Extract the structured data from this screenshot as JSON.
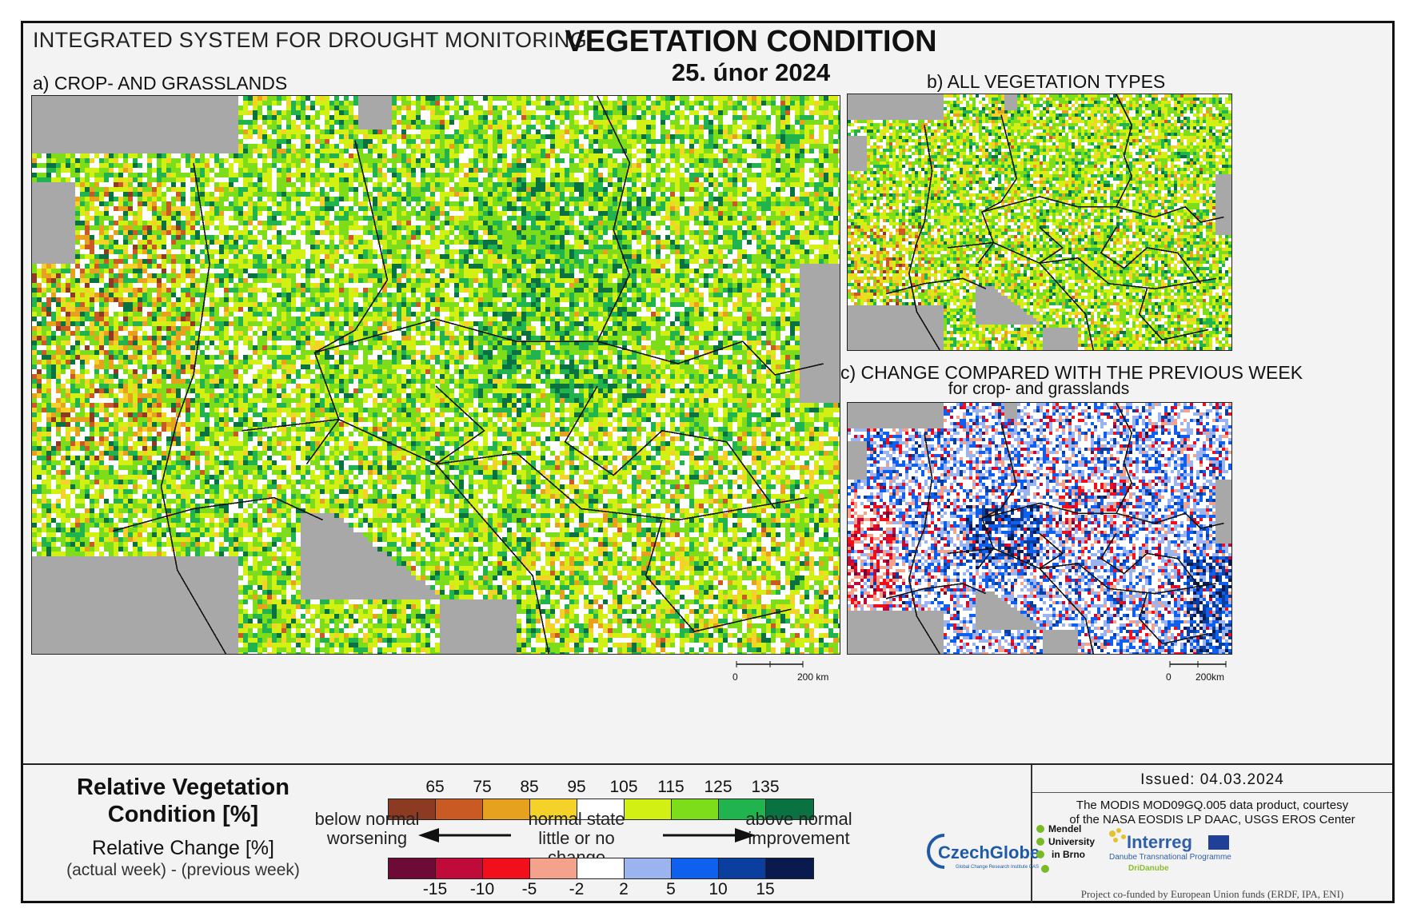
{
  "header": {
    "system": "INTEGRATED SYSTEM FOR DROUGHT MONITORING",
    "title": "VEGETATION CONDITION",
    "date": "25. únor 2024"
  },
  "panels": {
    "a": {
      "label": "a) CROP- AND GRASSLANDS",
      "scale_zero": "0",
      "scale_label": "200 km"
    },
    "b": {
      "label": "b) ALL VEGETATION TYPES"
    },
    "c": {
      "label": "c) CHANGE COMPARED WITH THE PREVIOUS WEEK",
      "sublabel": "for crop- and grasslands",
      "scale_zero": "0",
      "scale_label": "200km"
    }
  },
  "legend": {
    "rvc_title_1": "Relative Vegetation",
    "rvc_title_2": "Condition [%]",
    "change_title": "Relative Change [%]",
    "change_formula": "(actual week) - (previous week)",
    "rvc_ticks": [
      "65",
      "75",
      "85",
      "95",
      "105",
      "115",
      "125",
      "135"
    ],
    "rvc_colors": [
      "#8c3a22",
      "#c95a24",
      "#e6a11e",
      "#f5d22a",
      "#ffffff",
      "#d2f014",
      "#7ddd1a",
      "#21b34e",
      "#0a7240"
    ],
    "change_ticks": [
      "-15",
      "-10",
      "-5",
      "-2",
      "2",
      "5",
      "10",
      "15"
    ],
    "change_colors": [
      "#6d0a36",
      "#c00a3a",
      "#f00f1a",
      "#f5a28c",
      "#ffffff",
      "#9bb4f0",
      "#1060f0",
      "#0a3fa0",
      "#0a1a4e"
    ],
    "below_1": "below normal",
    "below_2": "worsening",
    "normal_1": "normal state",
    "normal_2": "little or no change",
    "above_1": "above normal",
    "above_2": "improvement"
  },
  "map_colors": {
    "water": "#a8a8a8",
    "border": "#111111"
  },
  "credits": {
    "issued": "Issued: 04.03.2024",
    "courtesy_1": "The MODIS MOD09GQ.005 data product, courtesy",
    "courtesy_2": "of the NASA EOSDIS LP DAAC, USGS EROS Center",
    "logo_czechglobe": "CzechGlobe",
    "logo_czechglobe_sub": "Global Change Research Institute CAS",
    "logo_mendel_1": "Mendel",
    "logo_mendel_2": "University",
    "logo_mendel_3": "in Brno",
    "logo_interreg": "Interreg",
    "logo_interreg_sub": "Danube Transnational Programme",
    "logo_dridanube": "DriDanube",
    "cofund": "Project co-funded by European Union funds (ERDF, IPA, ENI)"
  }
}
